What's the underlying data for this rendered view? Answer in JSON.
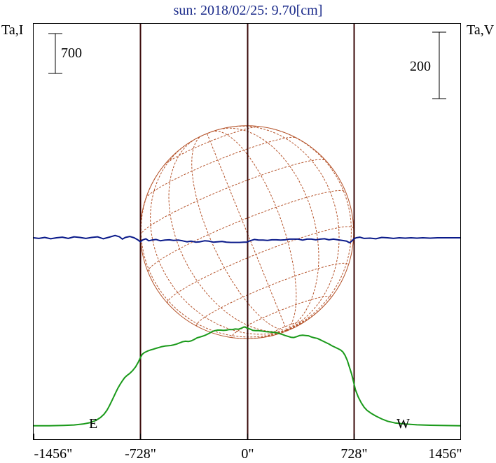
{
  "chart_data": {
    "type": "line",
    "title": "sun: 2018/02/25: 9.70[cm]",
    "left_axis_label": "Ta,I",
    "right_axis_label": "Ta,V",
    "left_scale_bar_label": "700",
    "right_scale_bar_label": "200",
    "x_tick_labels": [
      "-1456\"",
      "-728\"",
      "0\"",
      "728\"",
      "1456\""
    ],
    "x_ticks": [
      -1456,
      -728,
      0,
      728,
      1456
    ],
    "xlim": [
      -1456,
      1456
    ],
    "limb_markers": [
      {
        "label": "E",
        "x": -728
      },
      {
        "label": "W",
        "x": 728
      }
    ],
    "center_marker_x": 0,
    "solar_disk": {
      "center_x": 0,
      "radius_arcsec": 728,
      "grid": "heliographic",
      "color": "#b5532a"
    },
    "series": [
      {
        "name": "I",
        "color": "#1a9a1a",
        "points": [
          [
            -1456,
            15
          ],
          [
            -1350,
            16
          ],
          [
            -1250,
            22
          ],
          [
            -1180,
            30
          ],
          [
            -1120,
            45
          ],
          [
            -1070,
            70
          ],
          [
            -1030,
            110
          ],
          [
            -1000,
            160
          ],
          [
            -975,
            220
          ],
          [
            -955,
            290
          ],
          [
            -940,
            360
          ],
          [
            -925,
            440
          ],
          [
            -910,
            520
          ],
          [
            -895,
            600
          ],
          [
            -880,
            680
          ],
          [
            -865,
            745
          ],
          [
            -850,
            805
          ],
          [
            -835,
            860
          ],
          [
            -820,
            895
          ],
          [
            -800,
            935
          ],
          [
            -780,
            985
          ],
          [
            -760,
            1050
          ],
          [
            -740,
            1140
          ],
          [
            -728,
            1210
          ],
          [
            -715,
            1270
          ],
          [
            -700,
            1300
          ],
          [
            -680,
            1325
          ],
          [
            -660,
            1345
          ],
          [
            -640,
            1360
          ],
          [
            -620,
            1375
          ],
          [
            -600,
            1390
          ],
          [
            -580,
            1405
          ],
          [
            -560,
            1415
          ],
          [
            -540,
            1420
          ],
          [
            -520,
            1425
          ],
          [
            -500,
            1435
          ],
          [
            -480,
            1450
          ],
          [
            -460,
            1470
          ],
          [
            -440,
            1490
          ],
          [
            -420,
            1500
          ],
          [
            -400,
            1495
          ],
          [
            -380,
            1505
          ],
          [
            -360,
            1530
          ],
          [
            -340,
            1560
          ],
          [
            -320,
            1575
          ],
          [
            -300,
            1590
          ],
          [
            -280,
            1610
          ],
          [
            -260,
            1635
          ],
          [
            -240,
            1665
          ],
          [
            -220,
            1685
          ],
          [
            -200,
            1695
          ],
          [
            -180,
            1695
          ],
          [
            -160,
            1690
          ],
          [
            -140,
            1695
          ],
          [
            -120,
            1705
          ],
          [
            -100,
            1705
          ],
          [
            -80,
            1715
          ],
          [
            -60,
            1710
          ],
          [
            -40,
            1725
          ],
          [
            -20,
            1750
          ],
          [
            -10,
            1745
          ],
          [
            0,
            1730
          ],
          [
            20,
            1715
          ],
          [
            40,
            1690
          ],
          [
            60,
            1685
          ],
          [
            80,
            1685
          ],
          [
            100,
            1680
          ],
          [
            120,
            1670
          ],
          [
            140,
            1665
          ],
          [
            160,
            1660
          ],
          [
            180,
            1655
          ],
          [
            200,
            1650
          ],
          [
            220,
            1635
          ],
          [
            240,
            1620
          ],
          [
            260,
            1600
          ],
          [
            280,
            1585
          ],
          [
            300,
            1570
          ],
          [
            320,
            1565
          ],
          [
            340,
            1580
          ],
          [
            360,
            1600
          ],
          [
            380,
            1605
          ],
          [
            400,
            1600
          ],
          [
            420,
            1595
          ],
          [
            440,
            1575
          ],
          [
            460,
            1560
          ],
          [
            480,
            1550
          ],
          [
            500,
            1525
          ],
          [
            520,
            1500
          ],
          [
            540,
            1475
          ],
          [
            560,
            1450
          ],
          [
            580,
            1420
          ],
          [
            600,
            1395
          ],
          [
            620,
            1370
          ],
          [
            640,
            1345
          ],
          [
            655,
            1310
          ],
          [
            670,
            1250
          ],
          [
            685,
            1160
          ],
          [
            700,
            1040
          ],
          [
            715,
            920
          ],
          [
            728,
            780
          ],
          [
            740,
            650
          ],
          [
            760,
            520
          ],
          [
            780,
            420
          ],
          [
            800,
            340
          ],
          [
            820,
            285
          ],
          [
            850,
            230
          ],
          [
            880,
            185
          ],
          [
            920,
            135
          ],
          [
            960,
            95
          ],
          [
            1010,
            65
          ],
          [
            1080,
            45
          ],
          [
            1160,
            32
          ],
          [
            1250,
            25
          ],
          [
            1350,
            20
          ],
          [
            1456,
            15
          ]
        ]
      },
      {
        "name": "V",
        "color": "#0a1a8a",
        "points": [
          [
            -1456,
            0
          ],
          [
            -1420,
            -2
          ],
          [
            -1380,
            1
          ],
          [
            -1340,
            -3
          ],
          [
            -1300,
            0
          ],
          [
            -1260,
            2
          ],
          [
            -1220,
            -2
          ],
          [
            -1180,
            3
          ],
          [
            -1140,
            1
          ],
          [
            -1100,
            -2
          ],
          [
            -1060,
            1
          ],
          [
            -1020,
            3
          ],
          [
            -980,
            -3
          ],
          [
            -940,
            2
          ],
          [
            -900,
            7
          ],
          [
            -870,
            3
          ],
          [
            -850,
            -4
          ],
          [
            -830,
            1
          ],
          [
            -800,
            4
          ],
          [
            -770,
            0
          ],
          [
            -745,
            -6
          ],
          [
            -728,
            -12
          ],
          [
            -710,
            -6
          ],
          [
            -690,
            -3
          ],
          [
            -670,
            -9
          ],
          [
            -650,
            -7
          ],
          [
            -620,
            -5
          ],
          [
            -590,
            -9
          ],
          [
            -560,
            -7
          ],
          [
            -530,
            -6
          ],
          [
            -500,
            -8
          ],
          [
            -470,
            -7
          ],
          [
            -440,
            -9
          ],
          [
            -410,
            -12
          ],
          [
            -380,
            -10
          ],
          [
            -350,
            -13
          ],
          [
            -320,
            -12
          ],
          [
            -290,
            -9
          ],
          [
            -260,
            -10
          ],
          [
            -230,
            -13
          ],
          [
            -200,
            -12
          ],
          [
            -170,
            -11
          ],
          [
            -140,
            -13
          ],
          [
            -110,
            -14
          ],
          [
            -80,
            -14
          ],
          [
            -50,
            -14
          ],
          [
            -20,
            -13
          ],
          [
            0,
            -13
          ],
          [
            20,
            -9
          ],
          [
            50,
            -5
          ],
          [
            80,
            -7
          ],
          [
            110,
            -7
          ],
          [
            140,
            -8
          ],
          [
            170,
            -6
          ],
          [
            200,
            -6
          ],
          [
            230,
            -7
          ],
          [
            260,
            -6
          ],
          [
            290,
            -4
          ],
          [
            320,
            -4
          ],
          [
            350,
            -4
          ],
          [
            380,
            -7
          ],
          [
            410,
            -4
          ],
          [
            440,
            -4
          ],
          [
            470,
            -6
          ],
          [
            500,
            -4
          ],
          [
            530,
            -3
          ],
          [
            560,
            -6
          ],
          [
            590,
            -4
          ],
          [
            620,
            -6
          ],
          [
            650,
            -8
          ],
          [
            680,
            -10
          ],
          [
            700,
            -15
          ],
          [
            715,
            -10
          ],
          [
            728,
            -4
          ],
          [
            745,
            0
          ],
          [
            770,
            2
          ],
          [
            800,
            -2
          ],
          [
            840,
            -1
          ],
          [
            880,
            -3
          ],
          [
            920,
            1
          ],
          [
            960,
            0
          ],
          [
            1000,
            -2
          ],
          [
            1040,
            0
          ],
          [
            1080,
            -1
          ],
          [
            1120,
            0
          ],
          [
            1160,
            -1
          ],
          [
            1200,
            0
          ],
          [
            1250,
            -1
          ],
          [
            1300,
            0
          ],
          [
            1350,
            0
          ],
          [
            1400,
            0
          ],
          [
            1456,
            0
          ]
        ]
      }
    ]
  }
}
